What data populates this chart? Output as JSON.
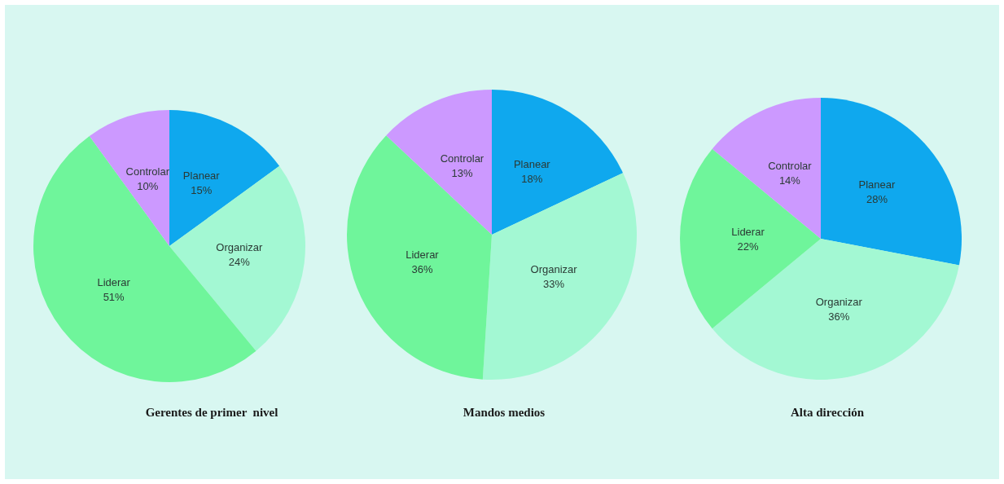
{
  "chart_data": [
    {
      "type": "pie",
      "title": "Gerentes de primer  nivel",
      "categories": [
        "Planear",
        "Organizar",
        "Liderar",
        "Controlar"
      ],
      "values": [
        15,
        24,
        51,
        10
      ],
      "value_labels": [
        "15%",
        "24%",
        "51%",
        "10%"
      ],
      "colors": [
        "#0fa8ee",
        "#a3f8d3",
        "#6ff59b",
        "#cc99ff"
      ]
    },
    {
      "type": "pie",
      "title": "Mandos medios",
      "categories": [
        "Planear",
        "Organizar",
        "Liderar",
        "Controlar"
      ],
      "values": [
        18,
        33,
        36,
        13
      ],
      "value_labels": [
        "18%",
        "33%",
        "36%",
        "13%"
      ],
      "colors": [
        "#0fa8ee",
        "#a3f8d3",
        "#6ff59b",
        "#cc99ff"
      ]
    },
    {
      "type": "pie",
      "title": "Alta dirección",
      "categories": [
        "Planear",
        "Organizar",
        "Liderar",
        "Controlar"
      ],
      "values": [
        28,
        36,
        22,
        14
      ],
      "value_labels": [
        "28%",
        "36%",
        "22%",
        "14%"
      ],
      "colors": [
        "#0fa8ee",
        "#a3f8d3",
        "#6ff59b",
        "#cc99ff"
      ]
    }
  ]
}
